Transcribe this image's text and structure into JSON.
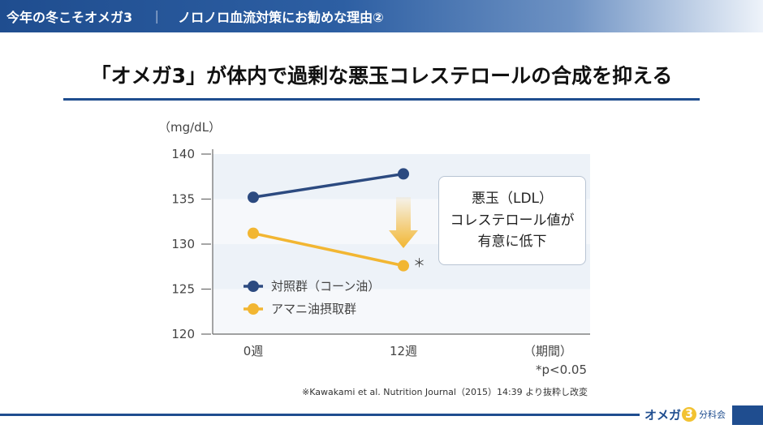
{
  "header": {
    "left": "今年の冬こそオメガ3",
    "separator": "｜",
    "right": "ノロノロ血流対策にお勧めな理由②"
  },
  "title": "「オメガ3」が体内で過剰な悪玉コレステロールの合成を抑える",
  "callout_text": "悪玉（LDL）\nコレステロール値が\n有意に低下",
  "source_note": "※Kawakami et al. Nutrition Journal（2015）14:39 より抜粋し改変",
  "brand": {
    "part1": "オメガ",
    "number": "3",
    "part2": "分科会"
  },
  "colors": {
    "control": "#2c4a80",
    "treatment": "#f2b632",
    "accent": "#1f4d8f"
  },
  "chart_data": {
    "type": "line",
    "unit_label": "（mg/dL）",
    "x_unit_label": "（期間）",
    "significance_note": "*p<0.05",
    "significance_marker": "＊",
    "categories": [
      "0週",
      "12週"
    ],
    "ylim": [
      120,
      140
    ],
    "yticks": [
      140,
      135,
      130,
      125,
      120
    ],
    "grid": true,
    "legend_position": "bottom-left",
    "series": [
      {
        "name": "対照群（コーン油）",
        "values": [
          135.2,
          137.8
        ],
        "color": "#2c4a80"
      },
      {
        "name": "アマニ油摂取群",
        "values": [
          131.2,
          127.6
        ],
        "color": "#f2b632"
      }
    ]
  }
}
